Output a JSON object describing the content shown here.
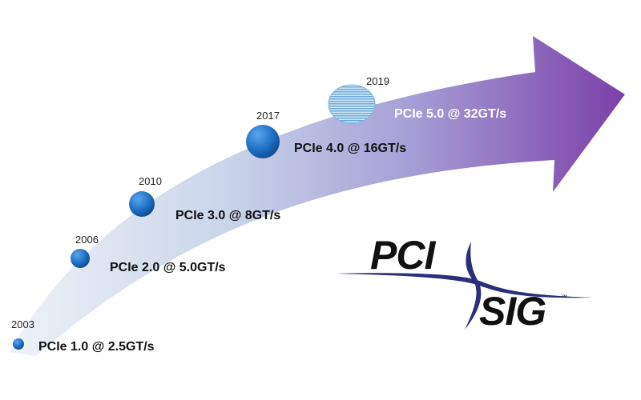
{
  "timeline": {
    "milestones": [
      {
        "year": "2003",
        "label": "PCIe 1.0 @ 2.5GT/s"
      },
      {
        "year": "2006",
        "label": "PCIe 2.0 @ 5.0GT/s"
      },
      {
        "year": "2010",
        "label": "PCIe 3.0 @ 8GT/s"
      },
      {
        "year": "2017",
        "label": "PCIe 4.0 @ 16GT/s"
      },
      {
        "year": "2019",
        "label": "PCIe 5.0 @ 32GT/s"
      }
    ]
  },
  "logo": {
    "line1": "PCI",
    "line2": "SIG",
    "tm": "™"
  },
  "colors": {
    "arrow_start": "#dfe7f2",
    "arrow_mid": "#a9aedb",
    "arrow_end": "#7b3fa8",
    "dot_fill": "#1f6fc4",
    "dot_dark": "#0e4a8c",
    "logo_swoosh": "#2b2f7a"
  }
}
